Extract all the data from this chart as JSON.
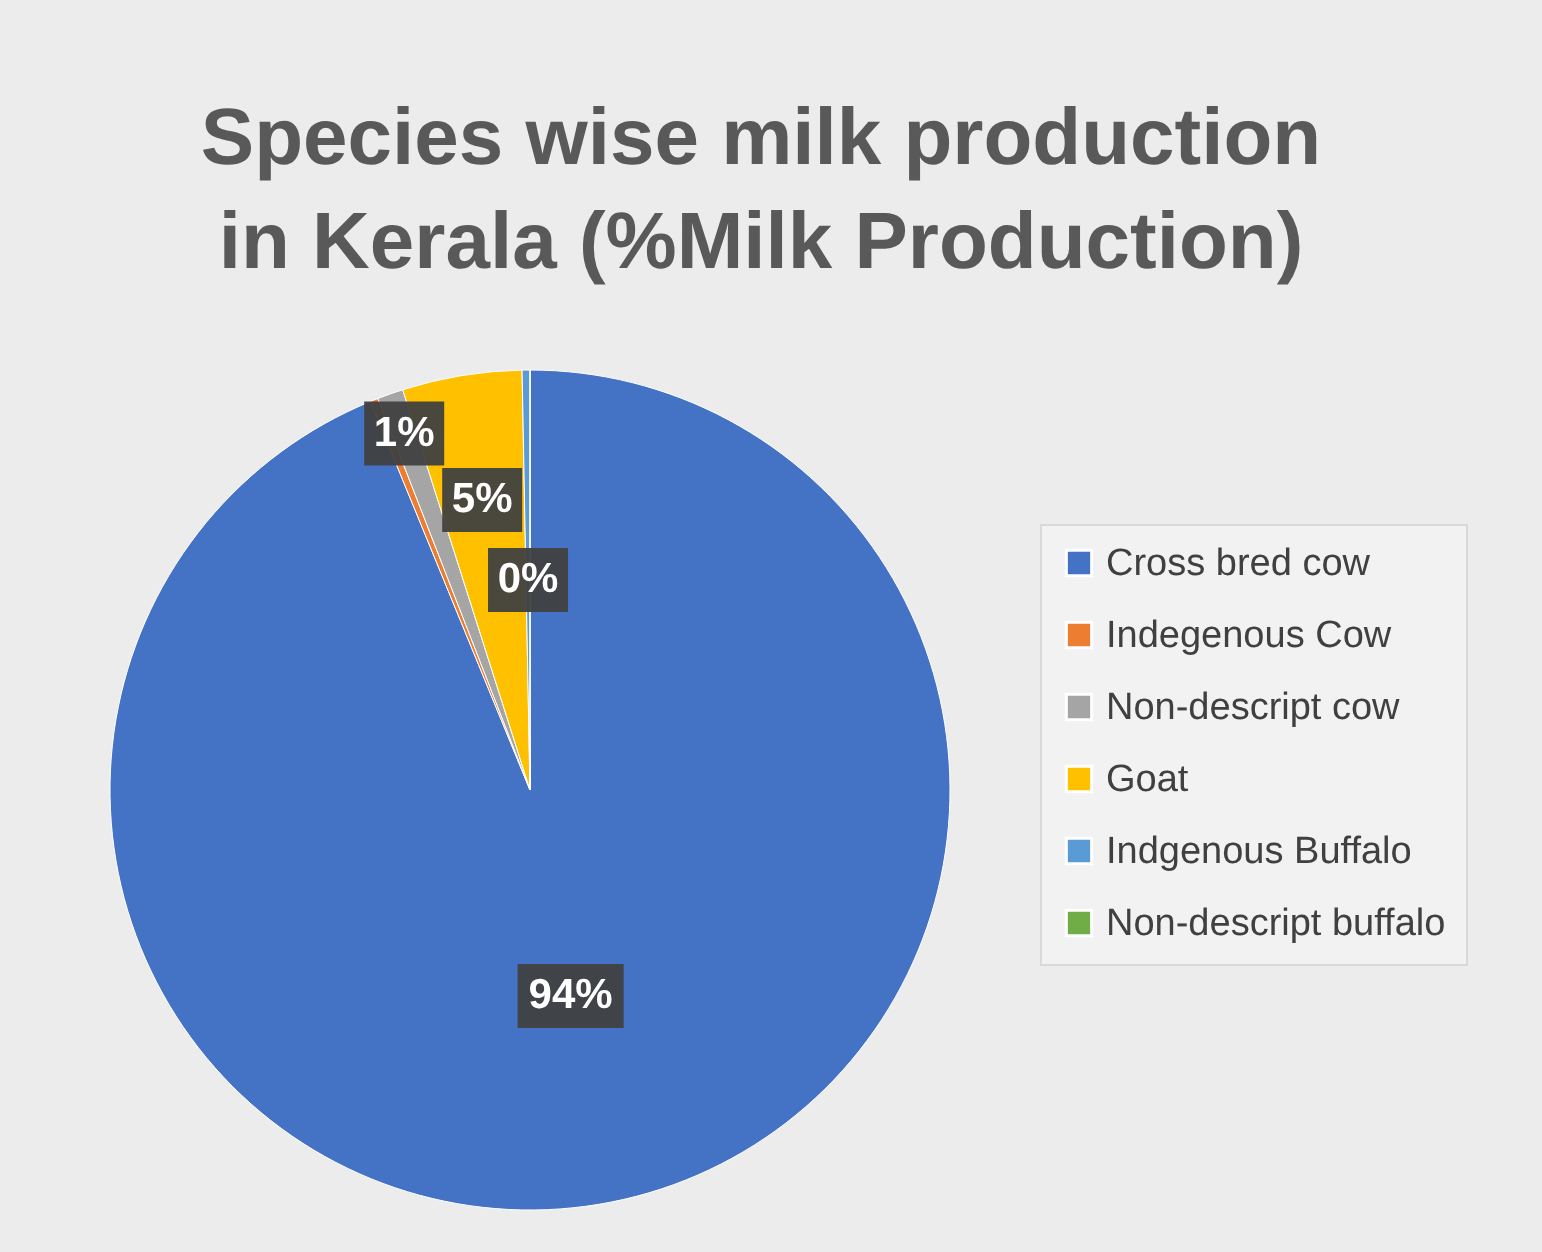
{
  "chart_data": {
    "type": "pie",
    "title": "Species wise milk production in Kerala (%Milk Production)",
    "categories": [
      "Cross bred cow",
      "Indegenous Cow",
      "Non-descript cow",
      "Goat",
      "Indgenous Buffalo",
      "Non-descript buffalo"
    ],
    "values": [
      93.8,
      0.3,
      1.0,
      4.6,
      0.3,
      0.0
    ],
    "colors": [
      "#4472c4",
      "#ed7d31",
      "#a5a5a5",
      "#ffc000",
      "#5b9bd5",
      "#70ad47"
    ],
    "value_labels": [
      "94%",
      null,
      "1%",
      "5%",
      "0%",
      null
    ],
    "legend": "right"
  }
}
